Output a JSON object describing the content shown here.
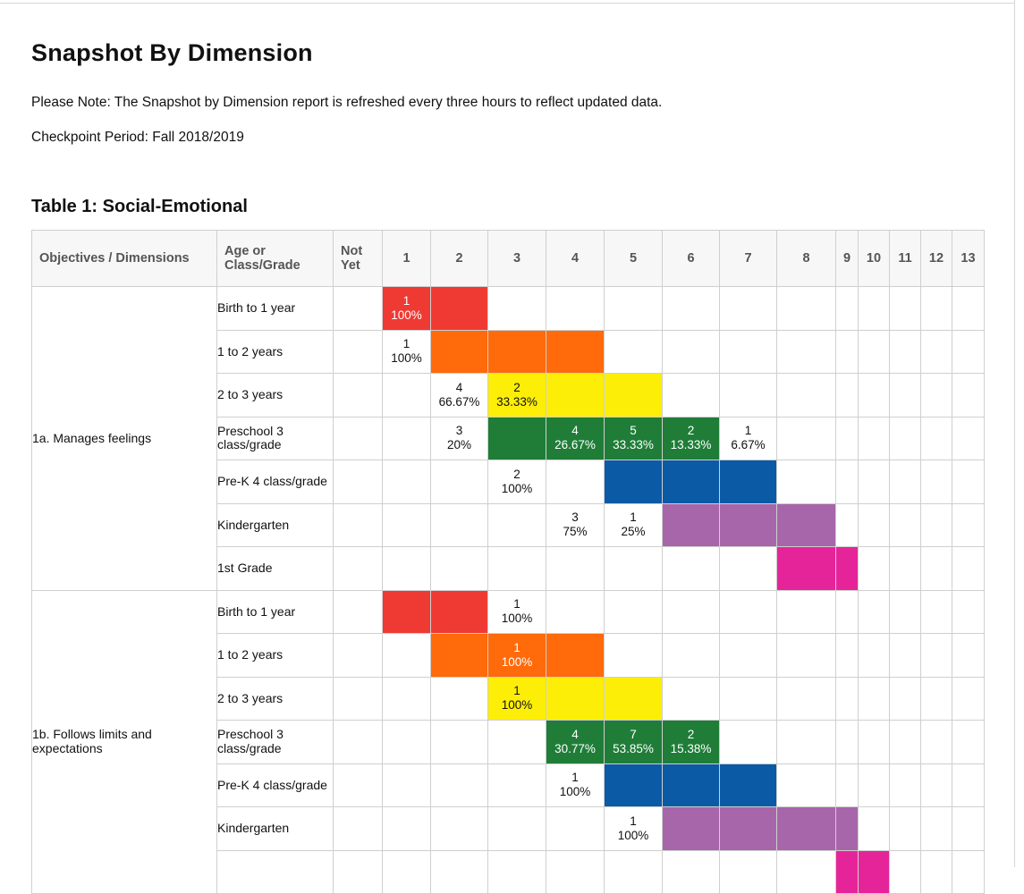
{
  "page": {
    "title": "Snapshot By Dimension",
    "note": "Please Note: The Snapshot by Dimension report is refreshed every three hours to reflect updated data.",
    "checkpoint": "Checkpoint Period: Fall 2018/2019",
    "table_title": "Table 1: Social-Emotional"
  },
  "table": {
    "headers": {
      "objectives": "Objectives / Dimensions",
      "age": "Age or Class/Grade",
      "not_yet": "Not Yet",
      "levels": [
        "1",
        "2",
        "3",
        "4",
        "5",
        "6",
        "7",
        "8",
        "9",
        "10",
        "11",
        "12",
        "13"
      ]
    },
    "colors": {
      "red": "#ef3a33",
      "orange": "#ff6a0a",
      "yellow": "#fcee06",
      "green": "#1f7d38",
      "blue": "#0b5aa5",
      "purple": "#a766aa",
      "pink": "#e6249a"
    },
    "groups": [
      {
        "objective": "1a. Manages feelings",
        "rows": [
          {
            "age": "Birth to 1 year",
            "color": "red",
            "band": [
              1,
              2
            ],
            "values": [
              {
                "col": 1,
                "count": "1",
                "pct": "100%"
              }
            ]
          },
          {
            "age": "1 to 2 years",
            "color": "orange",
            "band": [
              2,
              4
            ],
            "values": [
              {
                "col": 1,
                "count": "1",
                "pct": "100%"
              }
            ]
          },
          {
            "age": "2 to 3 years",
            "color": "yellow",
            "band": [
              3,
              5
            ],
            "values": [
              {
                "col": 2,
                "count": "4",
                "pct": "66.67%"
              },
              {
                "col": 3,
                "count": "2",
                "pct": "33.33%"
              }
            ]
          },
          {
            "age": "Preschool 3 class/grade",
            "color": "green",
            "band": [
              3,
              6
            ],
            "values": [
              {
                "col": 2,
                "count": "3",
                "pct": "20%"
              },
              {
                "col": 4,
                "count": "4",
                "pct": "26.67%"
              },
              {
                "col": 5,
                "count": "5",
                "pct": "33.33%"
              },
              {
                "col": 6,
                "count": "2",
                "pct": "13.33%"
              },
              {
                "col": 7,
                "count": "1",
                "pct": "6.67%"
              }
            ]
          },
          {
            "age": "Pre-K 4 class/grade",
            "color": "blue",
            "band": [
              5,
              7
            ],
            "values": [
              {
                "col": 3,
                "count": "2",
                "pct": "100%"
              }
            ]
          },
          {
            "age": "Kindergarten",
            "color": "purple",
            "band": [
              6,
              8
            ],
            "values": [
              {
                "col": 4,
                "count": "3",
                "pct": "75%"
              },
              {
                "col": 5,
                "count": "1",
                "pct": "25%"
              }
            ]
          },
          {
            "age": "1st Grade",
            "color": "pink",
            "band": [
              8,
              9
            ],
            "values": []
          }
        ]
      },
      {
        "objective": "1b. Follows limits and expectations",
        "rows": [
          {
            "age": "Birth to 1 year",
            "color": "red",
            "band": [
              1,
              2
            ],
            "values": [
              {
                "col": 3,
                "count": "1",
                "pct": "100%"
              }
            ]
          },
          {
            "age": "1 to 2 years",
            "color": "orange",
            "band": [
              2,
              4
            ],
            "values": [
              {
                "col": 3,
                "count": "1",
                "pct": "100%"
              }
            ]
          },
          {
            "age": "2 to 3 years",
            "color": "yellow",
            "band": [
              3,
              5
            ],
            "values": [
              {
                "col": 3,
                "count": "1",
                "pct": "100%"
              }
            ]
          },
          {
            "age": "Preschool 3 class/grade",
            "color": "green",
            "band": [
              4,
              6
            ],
            "values": [
              {
                "col": 4,
                "count": "4",
                "pct": "30.77%"
              },
              {
                "col": 5,
                "count": "7",
                "pct": "53.85%"
              },
              {
                "col": 6,
                "count": "2",
                "pct": "15.38%"
              }
            ]
          },
          {
            "age": "Pre-K 4 class/grade",
            "color": "blue",
            "band": [
              5,
              7
            ],
            "values": [
              {
                "col": 4,
                "count": "1",
                "pct": "100%"
              }
            ]
          },
          {
            "age": "Kindergarten",
            "color": "purple",
            "band": [
              6,
              9
            ],
            "values": [
              {
                "col": 5,
                "count": "1",
                "pct": "100%"
              }
            ]
          },
          {
            "age": "",
            "color": "pink",
            "band": [
              9,
              10
            ],
            "values": []
          }
        ]
      }
    ]
  }
}
